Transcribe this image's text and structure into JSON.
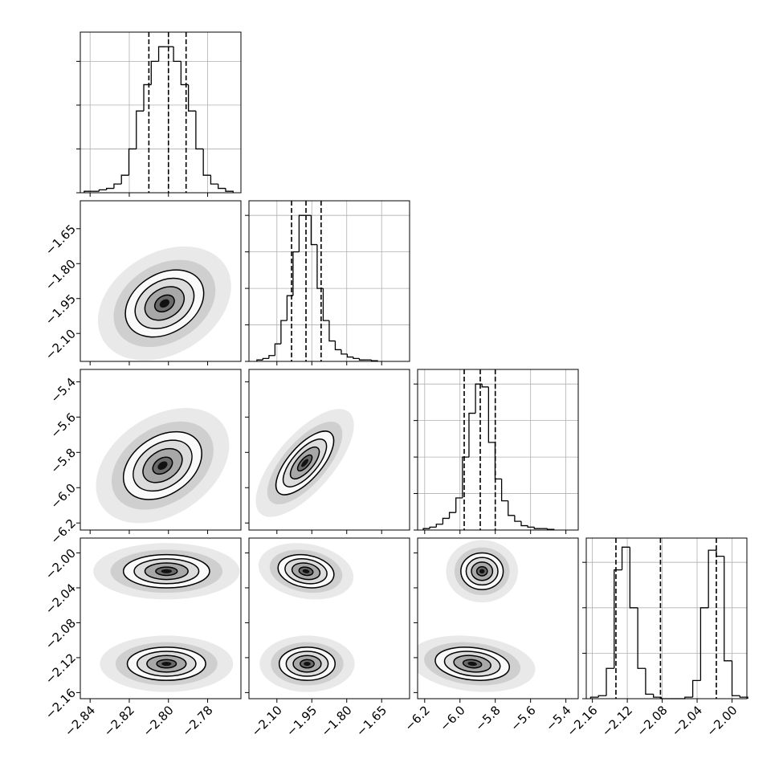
{
  "chart_data": {
    "type": "corner",
    "grid": true,
    "parameters": [
      {
        "lim": [
          -2.845,
          -2.763
        ],
        "ticks": [
          {
            "value": -2.84,
            "label": "−2.84"
          },
          {
            "value": -2.82,
            "label": "−2.82"
          },
          {
            "value": -2.8,
            "label": "−2.80"
          },
          {
            "value": -2.78,
            "label": "−2.78"
          }
        ]
      },
      {
        "lim": [
          -2.22,
          -1.53
        ],
        "ticks": [
          {
            "value": -2.1,
            "label": "−2.10"
          },
          {
            "value": -1.95,
            "label": "−1.95"
          },
          {
            "value": -1.8,
            "label": "−1.80"
          },
          {
            "value": -1.65,
            "label": "−1.65"
          }
        ]
      },
      {
        "lim": [
          -6.24,
          -5.33
        ],
        "ticks": [
          {
            "value": -6.2,
            "label": "−6.2"
          },
          {
            "value": -6.0,
            "label": "−6.0"
          },
          {
            "value": -5.8,
            "label": "−5.8"
          },
          {
            "value": -5.6,
            "label": "−5.6"
          },
          {
            "value": -5.4,
            "label": "−5.4"
          }
        ]
      },
      {
        "lim": [
          -2.167,
          -1.983
        ],
        "ticks": [
          {
            "value": -2.16,
            "label": "−2.16"
          },
          {
            "value": -2.12,
            "label": "−2.12"
          },
          {
            "value": -2.08,
            "label": "−2.08"
          },
          {
            "value": -2.04,
            "label": "−2.04"
          },
          {
            "value": -2.0,
            "label": "−2.00"
          }
        ]
      }
    ],
    "histograms": [
      {
        "bins": [
          -2.843,
          -2.8392,
          -2.8354,
          -2.8316,
          -2.8278,
          -2.824,
          -2.8202,
          -2.8164,
          -2.8126,
          -2.8088,
          -2.805,
          -2.8012,
          -2.7974,
          -2.7936,
          -2.7898,
          -2.786,
          -2.7822,
          -2.7784,
          -2.7746,
          -2.7708,
          -2.767
        ],
        "counts": [
          1,
          1,
          2,
          3,
          6,
          12,
          30,
          56,
          74,
          90,
          100,
          100,
          90,
          74,
          56,
          30,
          12,
          6,
          3,
          1
        ],
        "ylim": [
          0,
          110
        ],
        "yticks": [
          0,
          30,
          60,
          90
        ],
        "quantiles": [
          -2.81,
          -2.8,
          -2.791
        ]
      },
      {
        "bins": [
          -2.186,
          -2.1601,
          -2.1342,
          -2.1083,
          -2.0824,
          -2.0565,
          -2.0306,
          -2.0047,
          -1.9788,
          -1.9529,
          -1.927,
          -1.9011,
          -1.8752,
          -1.8493,
          -1.8234,
          -1.7975,
          -1.7716,
          -1.7457,
          -1.7198,
          -1.6939,
          -1.668
        ],
        "counts": [
          1,
          2,
          4,
          12,
          28,
          45,
          75,
          100,
          100,
          80,
          50,
          28,
          14,
          8,
          5,
          3,
          2,
          1,
          1,
          0.5
        ],
        "ylim": [
          0,
          110
        ],
        "yticks": [
          0,
          25,
          50,
          75,
          100
        ],
        "quantiles": [
          -2.037,
          -1.975,
          -1.91
        ]
      },
      {
        "bins": [
          -6.208,
          -6.171,
          -6.134,
          -6.097,
          -6.06,
          -6.023,
          -5.986,
          -5.949,
          -5.912,
          -5.875,
          -5.838,
          -5.801,
          -5.764,
          -5.727,
          -5.69,
          -5.653,
          -5.616,
          -5.579,
          -5.542,
          -5.505,
          -5.468
        ],
        "counts": [
          1,
          2,
          4,
          8,
          12,
          22,
          50,
          80,
          100,
          98,
          60,
          35,
          20,
          10,
          6,
          3,
          2,
          1,
          1,
          0.5
        ],
        "ylim": [
          0,
          110
        ],
        "yticks": [
          0,
          25,
          50,
          75,
          100
        ],
        "quantiles": [
          -5.976,
          -5.885,
          -5.8
        ]
      },
      {
        "bins": [
          -2.162,
          -2.153,
          -2.144,
          -2.135,
          -2.126,
          -2.117,
          -2.108,
          -2.099,
          -2.09,
          -2.081,
          -2.072,
          -2.063,
          -2.054,
          -2.045,
          -2.036,
          -2.027,
          -2.018,
          -2.009,
          -2.0,
          -1.991,
          -1.982
        ],
        "counts": [
          1,
          2,
          20,
          85,
          100,
          60,
          20,
          3,
          1,
          0,
          0,
          0,
          1,
          12,
          60,
          98,
          94,
          25,
          2,
          1
        ],
        "ylim": [
          0,
          106
        ],
        "yticks": [
          0,
          30,
          60,
          90
        ],
        "quantiles": [
          -2.133,
          -2.082,
          -2.018
        ]
      }
    ],
    "pairs": [
      {
        "components": [
          {
            "mean_x": -2.802,
            "mean_y": -1.971,
            "sd_x": 0.01,
            "sd_y": 0.072,
            "rho": 0.3
          }
        ]
      },
      {
        "components": [
          {
            "mean_x": -2.803,
            "mean_y": -5.875,
            "sd_x": 0.01,
            "sd_y": 0.096,
            "rho": 0.35
          }
        ]
      },
      {
        "components": [
          {
            "mean_x": -1.98,
            "mean_y": -5.86,
            "sd_x": 0.062,
            "sd_y": 0.09,
            "rho": 0.7
          }
        ]
      },
      {
        "components": [
          {
            "mean_x": -2.801,
            "mean_y": -2.021,
            "sd_x": 0.011,
            "sd_y": 0.0095,
            "rho": 0
          },
          {
            "mean_x": -2.801,
            "mean_y": -2.127,
            "sd_x": 0.01,
            "sd_y": 0.0095,
            "rho": 0
          }
        ]
      },
      {
        "components": [
          {
            "mean_x": -1.975,
            "mean_y": -2.021,
            "sd_x": 0.06,
            "sd_y": 0.0095,
            "rho": -0.2
          },
          {
            "mean_x": -1.97,
            "mean_y": -2.127,
            "sd_x": 0.06,
            "sd_y": 0.0095,
            "rho": 0
          }
        ]
      },
      {
        "components": [
          {
            "mean_x": -5.875,
            "mean_y": -2.021,
            "sd_x": 0.06,
            "sd_y": 0.0105,
            "rho": 0
          },
          {
            "mean_x": -5.93,
            "mean_y": -2.127,
            "sd_x": 0.105,
            "sd_y": 0.0095,
            "rho": -0.2
          }
        ]
      }
    ]
  }
}
